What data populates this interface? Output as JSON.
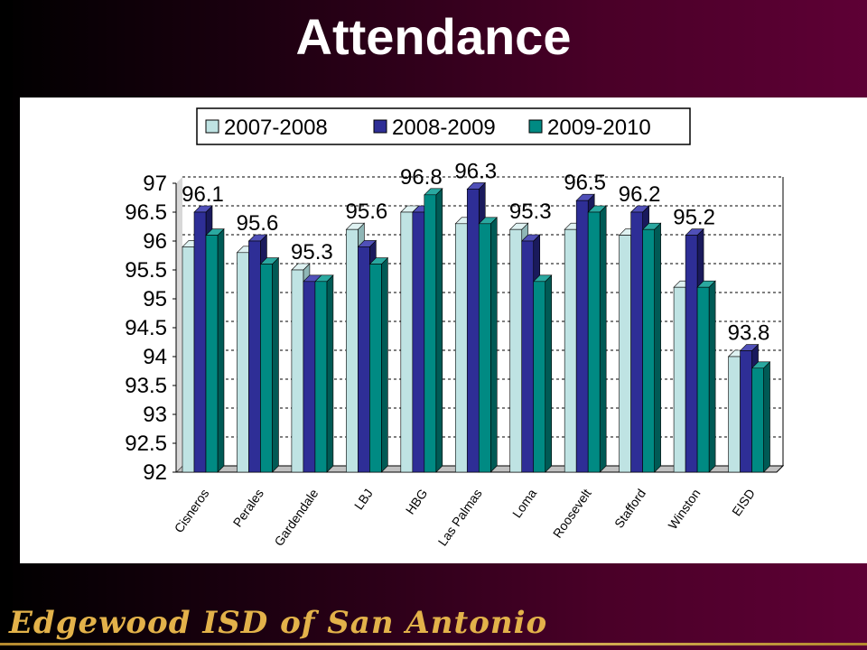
{
  "title": "Attendance",
  "footer": "Edgewood ISD of San Antonio",
  "colors": {
    "series": [
      "#bfe3e3",
      "#2e2e96",
      "#008a83"
    ],
    "series_side": [
      "#8fb6b6",
      "#1a1a5c",
      "#005a55"
    ],
    "series_top": [
      "#dff2f2",
      "#5050b8",
      "#2aa8a0"
    ]
  },
  "chart_data": {
    "type": "bar",
    "title": "",
    "xlabel": "",
    "ylabel": "",
    "ylim": [
      92,
      97
    ],
    "y_ticks": [
      "92",
      "92.5",
      "93",
      "93.5",
      "94",
      "94.5",
      "95",
      "95.5",
      "96",
      "96.5",
      "97"
    ],
    "grid": true,
    "legend_position": "top",
    "categories": [
      "Cisneros",
      "Perales",
      "Gardendale",
      "LBJ",
      "HBG",
      "Las Palmas",
      "Loma",
      "Roosevelt",
      "Stafford",
      "Winston",
      "EISD"
    ],
    "series": [
      {
        "name": "2007-2008",
        "values": [
          95.9,
          95.8,
          95.5,
          96.2,
          96.5,
          96.3,
          96.2,
          96.2,
          96.1,
          95.2,
          94.0
        ]
      },
      {
        "name": "2008-2009",
        "values": [
          96.5,
          96.0,
          95.3,
          95.9,
          96.5,
          96.9,
          96.0,
          96.7,
          96.5,
          96.1,
          94.1
        ]
      },
      {
        "name": "2009-2010",
        "values": [
          96.1,
          95.6,
          95.3,
          95.6,
          96.8,
          96.3,
          95.3,
          96.5,
          96.2,
          95.2,
          93.8
        ]
      }
    ],
    "data_labels": [
      "96.1",
      "95.6",
      "95.3",
      "95.6",
      "96.8",
      "96.3",
      "95.3",
      "96.5",
      "96.2",
      "95.2",
      "93.8"
    ]
  }
}
